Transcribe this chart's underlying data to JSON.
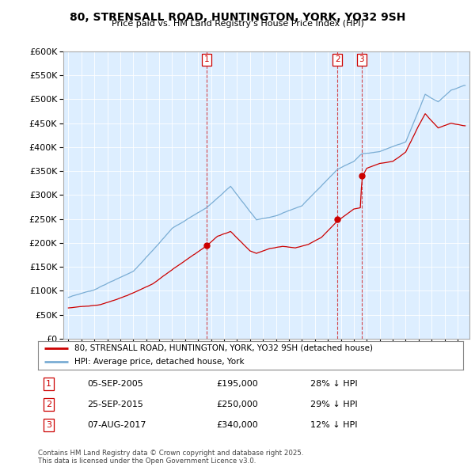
{
  "title": "80, STRENSALL ROAD, HUNTINGTON, YORK, YO32 9SH",
  "subtitle": "Price paid vs. HM Land Registry's House Price Index (HPI)",
  "legend_line1": "80, STRENSALL ROAD, HUNTINGTON, YORK, YO32 9SH (detached house)",
  "legend_line2": "HPI: Average price, detached house, York",
  "footer": "Contains HM Land Registry data © Crown copyright and database right 2025.\nThis data is licensed under the Open Government Licence v3.0.",
  "sales": [
    {
      "num": 1,
      "date_str": "05-SEP-2005",
      "date_x": 2005.68,
      "price": 195000,
      "pct": "28% ↓ HPI"
    },
    {
      "num": 2,
      "date_str": "25-SEP-2015",
      "date_x": 2015.73,
      "price": 250000,
      "pct": "29% ↓ HPI"
    },
    {
      "num": 3,
      "date_str": "07-AUG-2017",
      "date_x": 2017.6,
      "price": 340000,
      "pct": "12% ↓ HPI"
    }
  ],
  "ylim": [
    0,
    600000
  ],
  "yticks": [
    0,
    50000,
    100000,
    150000,
    200000,
    250000,
    300000,
    350000,
    400000,
    450000,
    500000,
    550000,
    600000
  ],
  "xlim": [
    1994.6,
    2025.9
  ],
  "red_color": "#cc0000",
  "blue_color": "#7aadd4",
  "bg_color": "#ddeeff",
  "grid_color": "#bbccdd"
}
